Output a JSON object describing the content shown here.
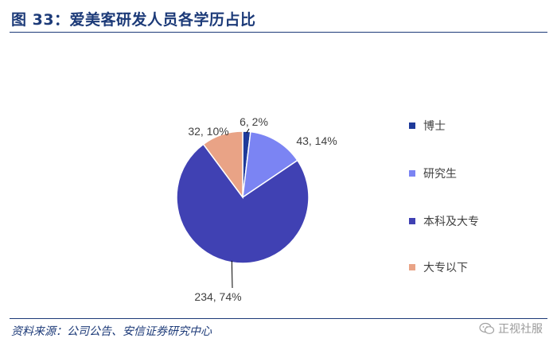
{
  "header": {
    "title": "图 33：爱美客研发人员各学历占比"
  },
  "footer": {
    "source": "资料来源：公司公告、安信证券研究中心",
    "watermark": "正视社服"
  },
  "colors": {
    "doctor": "#1f3a9a",
    "master": "#7b84f3",
    "undergrad": "#4041b3",
    "below": "#e9a386",
    "brand": "#1c3a78"
  },
  "chart_data": {
    "type": "pie",
    "title": "",
    "slices": [
      {
        "name": "博士",
        "value": 6,
        "percent": 2,
        "label": "6, 2%"
      },
      {
        "name": "研究生",
        "value": 43,
        "percent": 14,
        "label": "43, 14%"
      },
      {
        "name": "本科及大专",
        "value": 234,
        "percent": 74,
        "label": "234, 74%"
      },
      {
        "name": "大专以下",
        "value": 32,
        "percent": 10,
        "label": "32, 10%"
      }
    ],
    "legend_position": "right"
  }
}
